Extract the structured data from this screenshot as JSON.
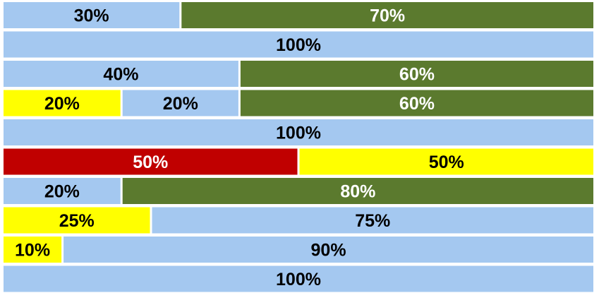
{
  "chart_data": {
    "type": "stacked_bar",
    "rows": [
      {
        "values": [
          30,
          70
        ],
        "value_labels": [
          "30%",
          "70%"
        ],
        "colors": [
          "#a4c8f0",
          "#5b7a2e"
        ]
      },
      {
        "values": [
          100
        ],
        "value_labels": [
          "100%"
        ],
        "colors": [
          "#a4c8f0"
        ]
      },
      {
        "values": [
          40,
          60
        ],
        "value_labels": [
          "40%",
          "60%"
        ],
        "colors": [
          "#a4c8f0",
          "#5b7a2e"
        ]
      },
      {
        "values": [
          20,
          20,
          60
        ],
        "value_labels": [
          "20%",
          "20%",
          "60%"
        ],
        "colors": [
          "#ffff00",
          "#a4c8f0",
          "#5b7a2e"
        ]
      },
      {
        "values": [
          100
        ],
        "value_labels": [
          "100%"
        ],
        "colors": [
          "#a4c8f0"
        ]
      },
      {
        "values": [
          50,
          50
        ],
        "value_labels": [
          "50%",
          "50%"
        ],
        "colors": [
          "#c00000",
          "#ffff00"
        ]
      },
      {
        "values": [
          20,
          80
        ],
        "value_labels": [
          "20%",
          "80%"
        ],
        "colors": [
          "#a4c8f0",
          "#5b7a2e"
        ]
      },
      {
        "values": [
          25,
          75
        ],
        "value_labels": [
          "25%",
          "75%"
        ],
        "colors": [
          "#ffff00",
          "#a4c8f0"
        ]
      },
      {
        "values": [
          10,
          90
        ],
        "value_labels": [
          "10%",
          "90%"
        ],
        "colors": [
          "#ffff00",
          "#a4c8f0"
        ]
      },
      {
        "values": [
          100
        ],
        "value_labels": [
          "100%"
        ],
        "colors": [
          "#a4c8f0"
        ]
      }
    ]
  }
}
